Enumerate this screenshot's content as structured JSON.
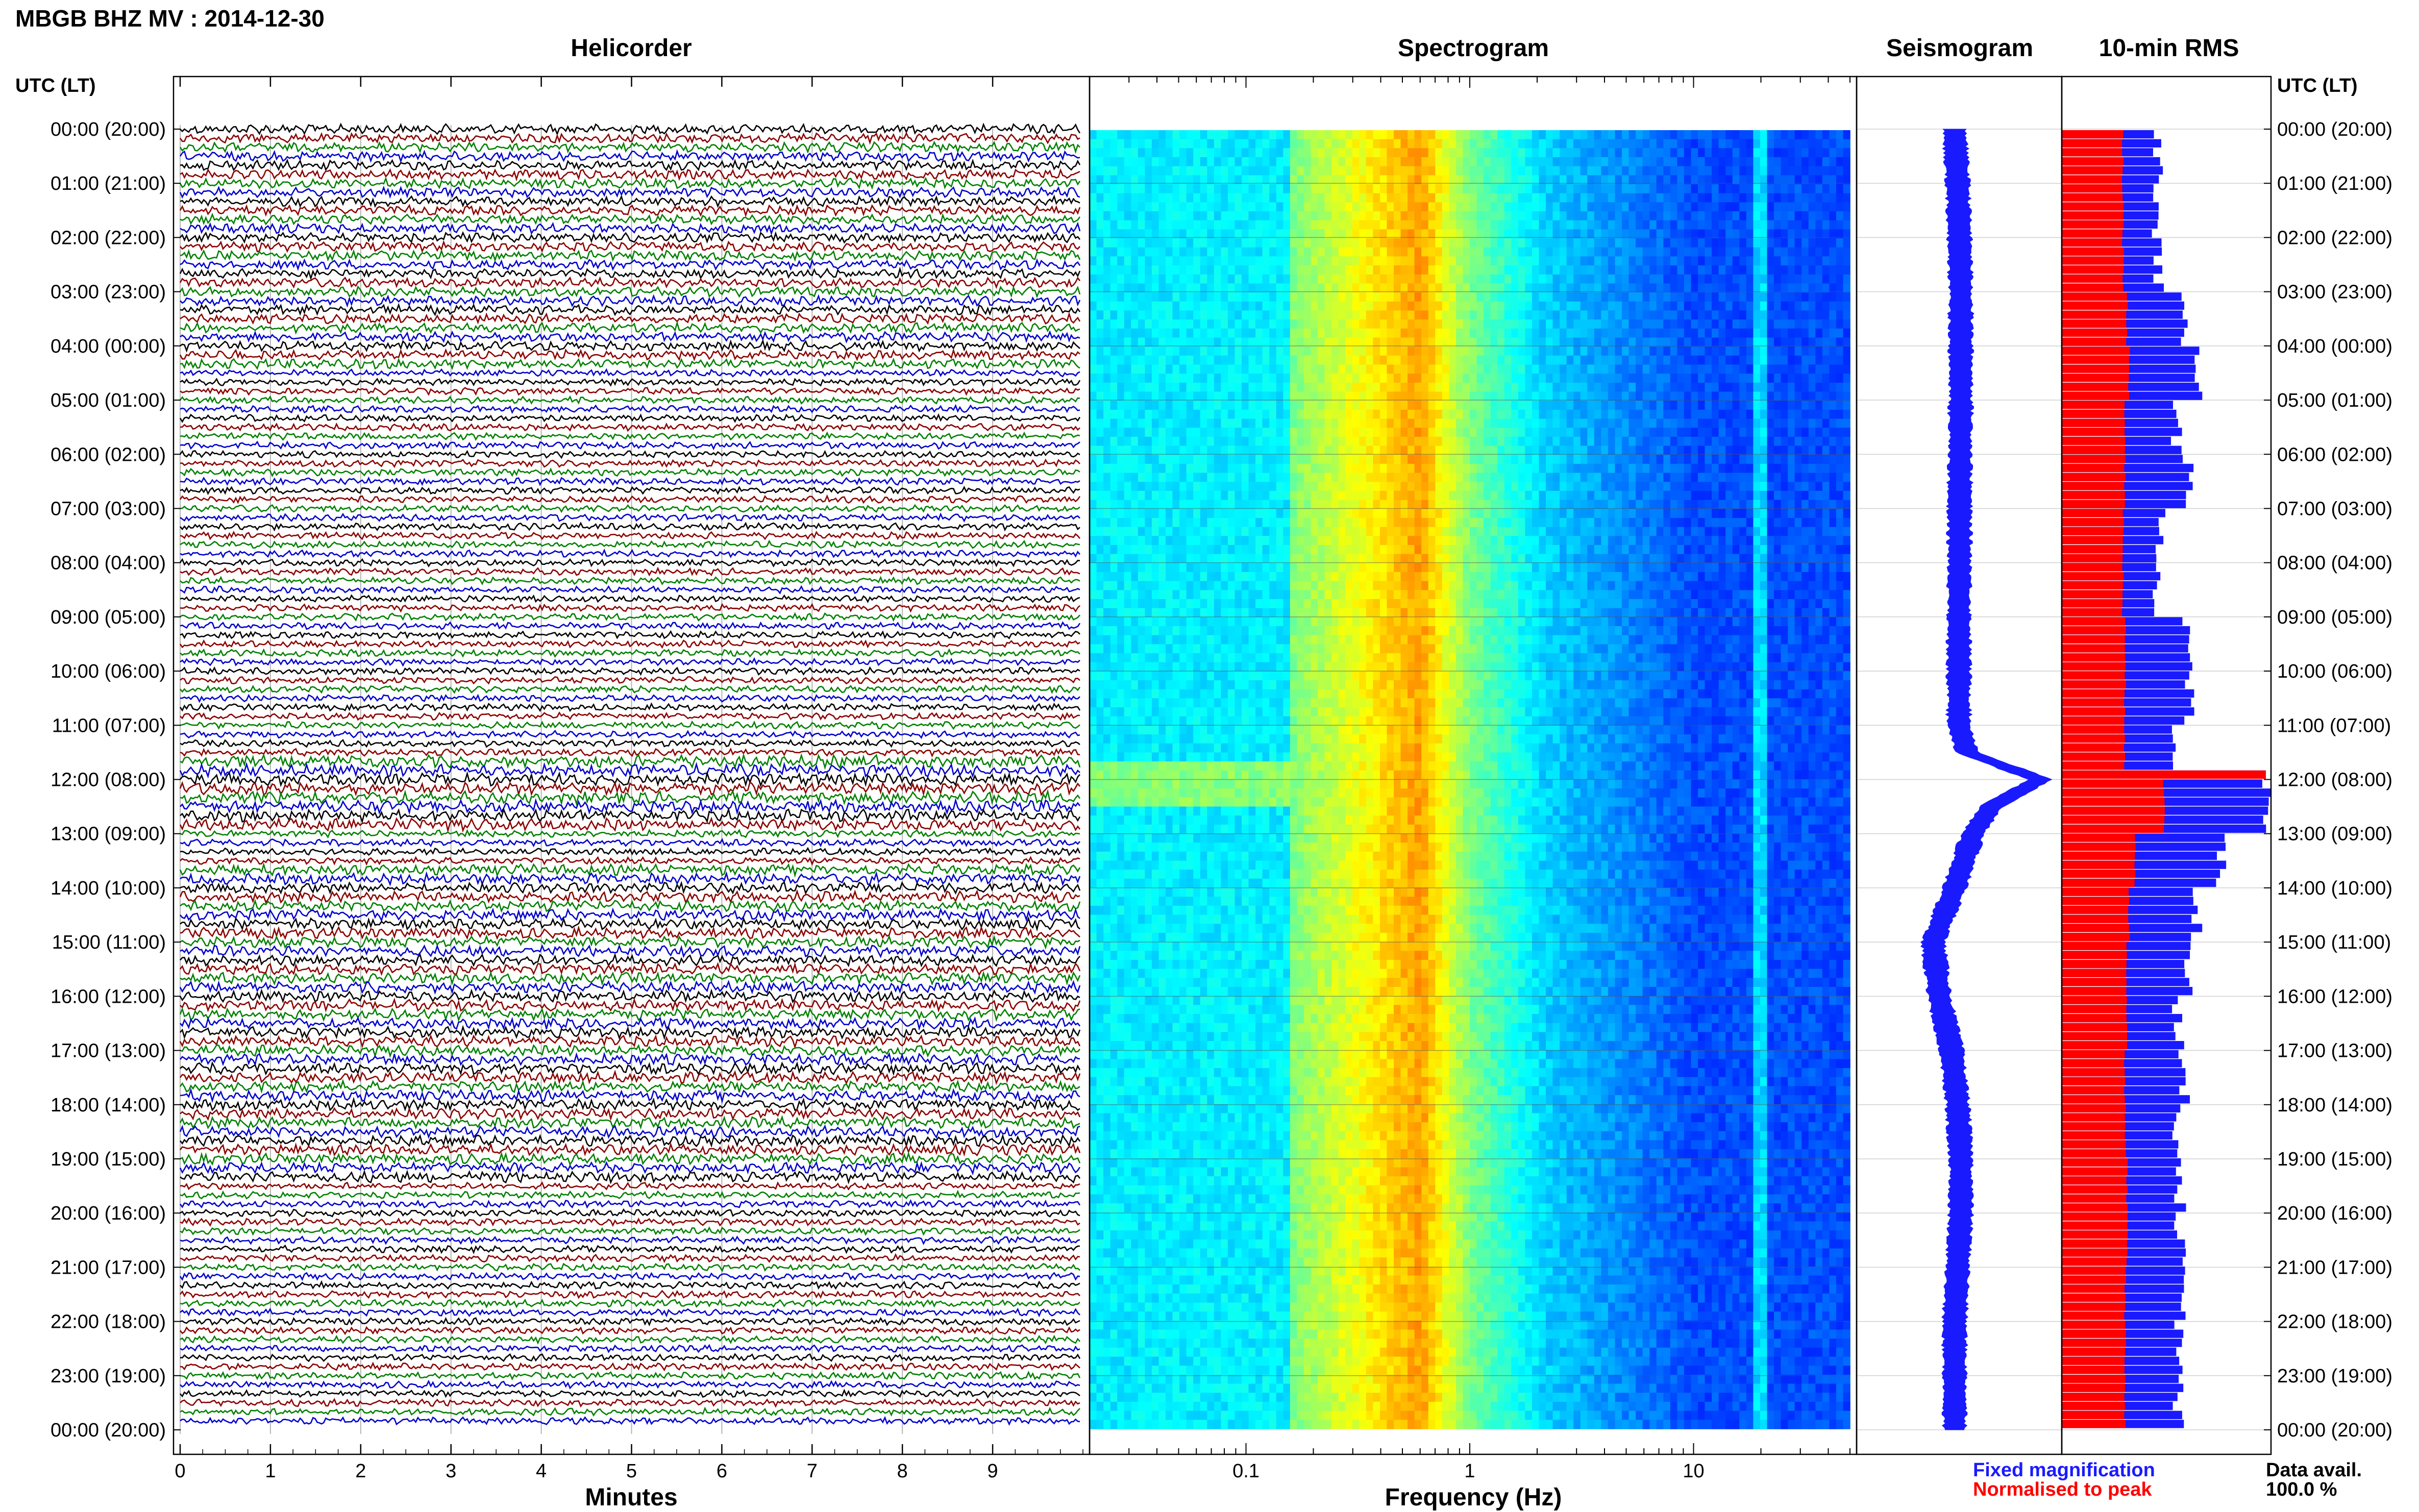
{
  "header": {
    "title": "MBGB BHZ MV : 2014-12-30",
    "panel_titles": {
      "helicorder": "Helicorder",
      "spectrogram": "Spectrogram",
      "seismogram": "Seismogram",
      "rms": "10-min RMS"
    },
    "left_axis_label": "UTC (LT)",
    "right_axis_label": "UTC (LT)"
  },
  "footer": {
    "legend_fixed": "Fixed magnification",
    "legend_normalised": "Normalised to peak",
    "data_avail_label": "Data avail.",
    "data_avail_value": "100.0 %"
  },
  "colors": {
    "helicorder_traces": [
      "#000000",
      "#8b0000",
      "#008000",
      "#0000cd"
    ],
    "seismogram": "#1a1aff",
    "rms_fixed": "#1a1aff",
    "rms_normalised": "#ff0000",
    "grid": "#b5b5b5"
  },
  "chart_data": [
    {
      "type": "line",
      "panel": "helicorder",
      "title": "Helicorder",
      "xlabel": "Minutes",
      "x_ticks": [
        0,
        1,
        2,
        3,
        4,
        5,
        6,
        7,
        8,
        9
      ],
      "xlim": [
        0,
        10
      ],
      "y_tick_labels": [
        "00:00 (20:00)",
        "01:00 (21:00)",
        "02:00 (22:00)",
        "03:00 (23:00)",
        "04:00 (00:00)",
        "05:00 (01:00)",
        "06:00 (02:00)",
        "07:00 (03:00)",
        "08:00 (04:00)",
        "09:00 (05:00)",
        "10:00 (06:00)",
        "11:00 (07:00)",
        "12:00 (08:00)",
        "13:00 (09:00)",
        "14:00 (10:00)",
        "15:00 (11:00)",
        "16:00 (12:00)",
        "17:00 (13:00)",
        "18:00 (14:00)",
        "19:00 (15:00)",
        "20:00 (16:00)",
        "21:00 (17:00)",
        "22:00 (18:00)",
        "23:00 (19:00)",
        "00:00 (20:00)"
      ],
      "lines_per_hour": 6,
      "total_lines": 144
    },
    {
      "type": "heatmap",
      "panel": "spectrogram",
      "title": "Spectrogram",
      "xlabel": "Frequency (Hz)",
      "x_scale": "log",
      "xlim": [
        0.02,
        50
      ],
      "x_tick_labels": [
        "0.1",
        "1",
        "10"
      ],
      "x_tick_values": [
        0.1,
        1,
        10
      ],
      "colormap": "jet",
      "peak_band_hz": [
        0.15,
        0.6
      ],
      "secondary_band_hz": 20
    },
    {
      "type": "line",
      "panel": "seismogram",
      "title": "Seismogram",
      "description_hours": [
        0,
        1,
        2,
        3,
        4,
        5,
        6,
        7,
        8,
        9,
        10,
        11,
        11.5,
        12,
        12.5,
        13,
        14,
        15,
        16,
        17,
        18,
        19,
        20,
        21,
        22,
        23,
        24
      ],
      "offset": [
        0.0,
        0.05,
        0.08,
        0.1,
        0.1,
        0.1,
        0.09,
        0.08,
        0.08,
        0.07,
        0.07,
        0.07,
        0.2,
        1.4,
        0.6,
        0.3,
        0.0,
        -0.35,
        -0.25,
        -0.05,
        0.05,
        0.1,
        0.1,
        0.05,
        0.0,
        0.0,
        0.0
      ]
    },
    {
      "type": "bar",
      "panel": "rms",
      "title": "10-min RMS",
      "series": [
        {
          "name": "Fixed magnification"
        },
        {
          "name": "Normalised to peak"
        }
      ],
      "bins_per_hour": 6,
      "hours": 24,
      "fixed_hourly": [
        0.47,
        0.47,
        0.47,
        0.6,
        0.66,
        0.56,
        0.62,
        0.48,
        0.47,
        0.62,
        0.62,
        0.55,
        1.0,
        0.78,
        0.66,
        0.62,
        0.57,
        0.6,
        0.57,
        0.58,
        0.58,
        0.58,
        0.58,
        0.57
      ],
      "normalised_hourly": [
        0.3,
        0.3,
        0.3,
        0.32,
        0.33,
        0.31,
        0.31,
        0.3,
        0.3,
        0.31,
        0.31,
        0.31,
        0.5,
        0.36,
        0.33,
        0.32,
        0.32,
        0.31,
        0.31,
        0.32,
        0.32,
        0.31,
        0.31,
        0.31
      ]
    }
  ]
}
